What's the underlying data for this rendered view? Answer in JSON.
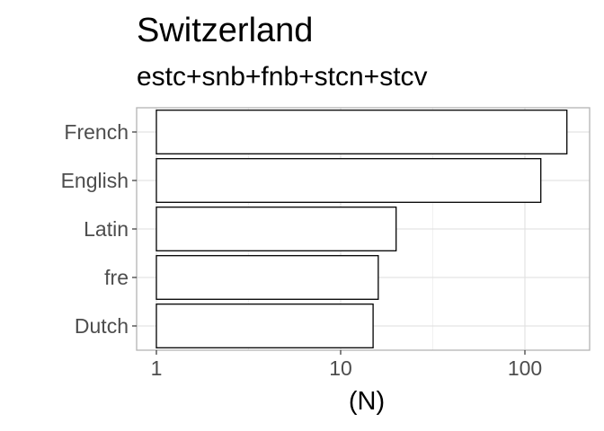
{
  "chart_data": {
    "type": "bar",
    "orientation": "horizontal",
    "title": "Switzerland",
    "subtitle": "estc+snb+fnb+stcn+stcv",
    "xlabel": "(N)",
    "ylabel": "",
    "x_scale": "log10",
    "xlim": [
      0.85,
      190
    ],
    "x_ticks": [
      {
        "value": 1,
        "label": "1"
      },
      {
        "value": 10,
        "label": "10"
      },
      {
        "value": 100,
        "label": "100"
      }
    ],
    "x_minor_ticks": [
      3.16,
      31.6
    ],
    "categories": [
      "French",
      "English",
      "Latin",
      "fre",
      "Dutch"
    ],
    "values": [
      169,
      122,
      20,
      16,
      15
    ],
    "grid": true,
    "legend": "none",
    "colors": {
      "bar_fill": "#ffffff",
      "bar_stroke": "#000000",
      "grid_major": "#e3e3e3",
      "grid_minor": "#f0f0f0",
      "panel_border": "#b3b3b3",
      "tick_text": "#4d4d4d",
      "title_text": "#000000"
    }
  }
}
